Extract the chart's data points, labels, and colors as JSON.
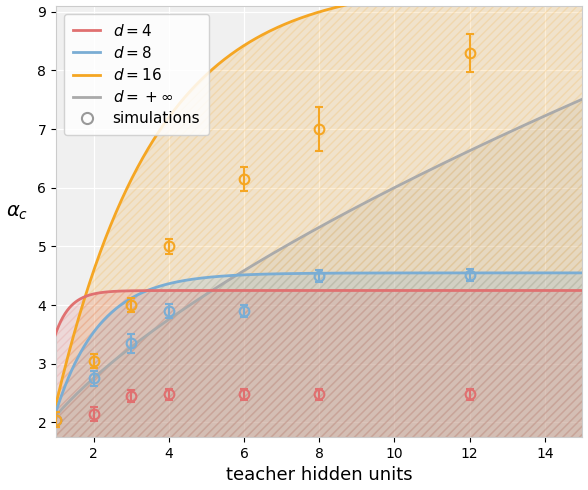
{
  "xlabel": "teacher hidden units",
  "ylabel": "$\\alpha_c$",
  "xlim": [
    1,
    15
  ],
  "ylim": [
    1.75,
    9.1
  ],
  "yticks": [
    2,
    3,
    4,
    5,
    6,
    7,
    8,
    9
  ],
  "xticks": [
    2,
    4,
    6,
    8,
    10,
    12,
    14
  ],
  "colors": {
    "d4": "#E07070",
    "d8": "#7AADD4",
    "d16": "#F5A623",
    "dinf": "#AAAAAA"
  },
  "sim_d4_x": [
    1,
    2,
    3,
    4,
    6,
    8,
    12
  ],
  "sim_d4_y": [
    2.05,
    2.15,
    2.45,
    2.48,
    2.48,
    2.48,
    2.48
  ],
  "sim_d4_e": [
    0.13,
    0.12,
    0.1,
    0.09,
    0.09,
    0.09,
    0.09
  ],
  "sim_d8_x": [
    1,
    2,
    3,
    4,
    6,
    8,
    12
  ],
  "sim_d8_y": [
    2.05,
    2.75,
    3.35,
    3.9,
    3.9,
    4.5,
    4.52
  ],
  "sim_d8_e": [
    0.13,
    0.12,
    0.16,
    0.12,
    0.1,
    0.1,
    0.1
  ],
  "sim_d16_x": [
    1,
    2,
    3,
    4,
    6,
    8,
    12
  ],
  "sim_d16_y": [
    2.05,
    3.05,
    4.0,
    5.0,
    6.15,
    7.0,
    8.3
  ],
  "sim_d16_e": [
    0.13,
    0.12,
    0.12,
    0.12,
    0.2,
    0.38,
    0.32
  ],
  "linewidth": 2.0,
  "markersize": 7,
  "fontsize_label": 13,
  "fontsize_ylabel": 14,
  "fontsize_legend": 11,
  "hatch": "////",
  "d4_sat": 2.5,
  "d4_rate": 2.5,
  "d8_sat": 4.55,
  "d8_rate": 0.85,
  "d16_sat": 9.5,
  "d16_rate": 0.38,
  "dinf_a": 2.05,
  "dinf_b": 0.0
}
